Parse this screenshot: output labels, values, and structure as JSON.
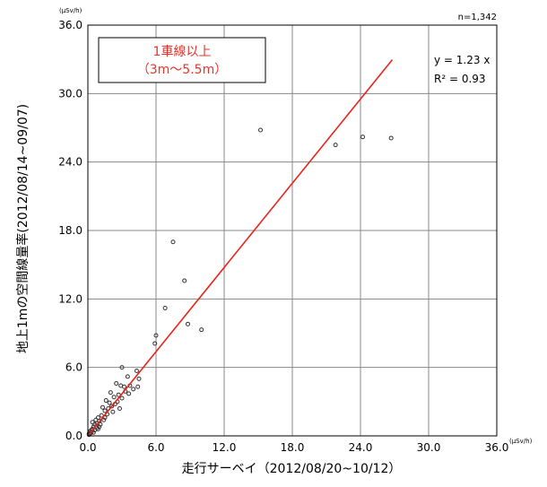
{
  "chart_data": {
    "type": "scatter",
    "xlabel": "走行サーベイ（2012/08/20~10/12）",
    "ylabel": "地上1mの空間線量率(2012/08/14~09/07)",
    "x_unit": "(μSv/h)",
    "y_unit": "(μSv/h)",
    "xlim": [
      0,
      36
    ],
    "ylim": [
      0,
      36
    ],
    "x_ticks": [
      "0.0",
      "6.0",
      "12.0",
      "18.0",
      "24.0",
      "30.0",
      "36.0"
    ],
    "y_ticks": [
      "0.0",
      "6.0",
      "12.0",
      "18.0",
      "24.0",
      "30.0",
      "36.0"
    ],
    "grid": true,
    "n_label": "n=1,342",
    "legend_box": {
      "line1": "1車線以上",
      "line2": "（3m～5.5m）"
    },
    "fit": {
      "equation": "y = 1.23 x",
      "r2": "R² = 0.93",
      "slope": 1.23,
      "x_range": [
        0,
        26.8
      ]
    },
    "points": [
      [
        15.2,
        26.8
      ],
      [
        21.8,
        25.5
      ],
      [
        24.2,
        26.2
      ],
      [
        26.7,
        26.1
      ],
      [
        7.5,
        17.0
      ],
      [
        8.5,
        13.6
      ],
      [
        6.8,
        11.2
      ],
      [
        8.8,
        9.8
      ],
      [
        10.0,
        9.3
      ],
      [
        6.0,
        8.8
      ],
      [
        5.9,
        8.1
      ],
      [
        3.0,
        6.0
      ],
      [
        4.3,
        5.7
      ],
      [
        3.5,
        5.2
      ],
      [
        4.5,
        5.0
      ],
      [
        2.5,
        4.6
      ],
      [
        2.9,
        4.4
      ],
      [
        3.2,
        4.3
      ],
      [
        3.7,
        4.4
      ],
      [
        4.0,
        4.1
      ],
      [
        4.4,
        4.3
      ],
      [
        2.0,
        3.8
      ],
      [
        2.3,
        3.4
      ],
      [
        2.7,
        3.6
      ],
      [
        3.3,
        3.9
      ],
      [
        1.6,
        3.1
      ],
      [
        1.9,
        2.9
      ],
      [
        2.1,
        2.6
      ],
      [
        2.6,
        3.0
      ],
      [
        1.3,
        2.5
      ],
      [
        1.5,
        2.2
      ],
      [
        1.7,
        1.9
      ],
      [
        1.2,
        1.8
      ],
      [
        0.9,
        1.6
      ],
      [
        1.0,
        1.3
      ],
      [
        0.8,
        1.1
      ],
      [
        0.6,
        1.0
      ],
      [
        0.5,
        0.8
      ],
      [
        0.4,
        0.6
      ],
      [
        0.3,
        0.5
      ],
      [
        0.3,
        0.3
      ],
      [
        0.2,
        0.4
      ],
      [
        0.2,
        0.2
      ],
      [
        0.1,
        0.2
      ],
      [
        0.1,
        0.1
      ],
      [
        0.6,
        0.5
      ],
      [
        0.8,
        0.7
      ],
      [
        1.1,
        1.0
      ],
      [
        1.4,
        1.4
      ],
      [
        1.8,
        2.4
      ],
      [
        2.2,
        2.1
      ],
      [
        0.7,
        1.4
      ],
      [
        0.4,
        1.2
      ],
      [
        0.5,
        0.3
      ],
      [
        1.0,
        0.8
      ],
      [
        2.4,
        2.8
      ],
      [
        3.0,
        3.3
      ],
      [
        3.6,
        3.7
      ],
      [
        2.8,
        2.4
      ],
      [
        1.5,
        1.6
      ],
      [
        0.9,
        0.6
      ]
    ]
  }
}
